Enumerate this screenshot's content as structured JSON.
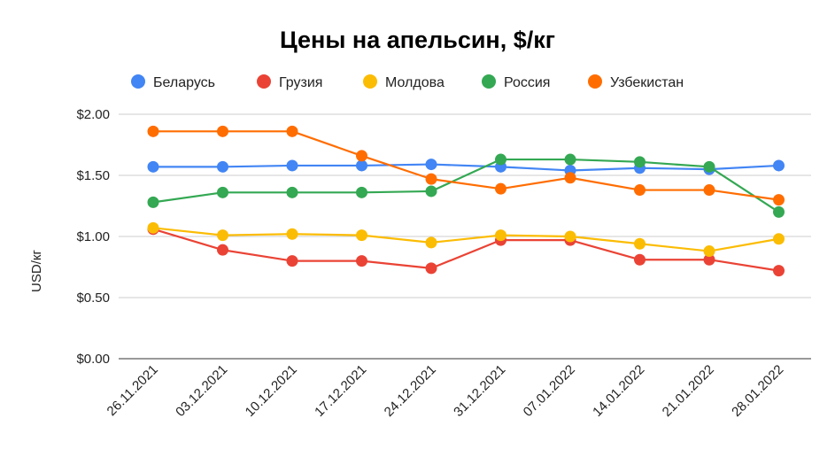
{
  "chart_data": {
    "type": "line",
    "title": "Цены на апельсин, $/кг",
    "xlabel": "",
    "ylabel": "USD/кг",
    "ylim": [
      0,
      2
    ],
    "y_ticks": [
      "$0.00",
      "$0.50",
      "$1.00",
      "$1.50",
      "$2.00"
    ],
    "y_tick_values": [
      0,
      0.5,
      1.0,
      1.5,
      2.0
    ],
    "grid": true,
    "legend_position": "top",
    "categories": [
      "26.11.2021",
      "03.12.2021",
      "10.12.2021",
      "17.12.2021",
      "24.12.2021",
      "31.12.2021",
      "07.01.2022",
      "14.01.2022",
      "21.01.2022",
      "28.01.2022"
    ],
    "series": [
      {
        "name": "Беларусь",
        "color": "#4285f4",
        "values": [
          1.57,
          1.57,
          1.58,
          1.58,
          1.59,
          1.57,
          1.54,
          1.56,
          1.55,
          1.58
        ]
      },
      {
        "name": "Грузия",
        "color": "#ea4335",
        "values": [
          1.06,
          0.89,
          0.8,
          0.8,
          0.74,
          0.97,
          0.97,
          0.81,
          0.81,
          0.72
        ]
      },
      {
        "name": "Молдова",
        "color": "#fbbc04",
        "values": [
          1.07,
          1.01,
          1.02,
          1.01,
          0.95,
          1.01,
          1.0,
          0.94,
          0.88,
          0.98
        ]
      },
      {
        "name": "Россия",
        "color": "#34a853",
        "values": [
          1.28,
          1.36,
          1.36,
          1.36,
          1.37,
          1.63,
          1.63,
          1.61,
          1.57,
          1.2
        ]
      },
      {
        "name": "Узбекистан",
        "color": "#ff6d01",
        "values": [
          1.86,
          1.86,
          1.86,
          1.66,
          1.47,
          1.39,
          1.48,
          1.38,
          1.38,
          1.3
        ]
      }
    ]
  }
}
